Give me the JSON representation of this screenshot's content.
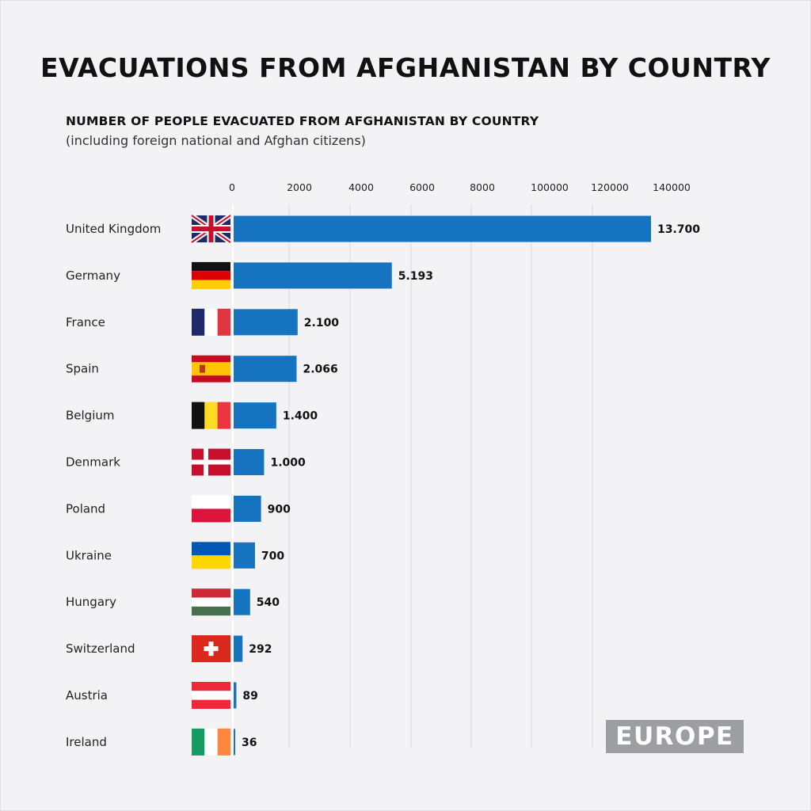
{
  "title": "EVACUATIONS FROM AFGHANISTAN BY COUNTRY",
  "subtitle": "NUMBER OF PEOPLE EVACUATED FROM AFGHANISTAN BY COUNTRY",
  "subtitle_note": "(including foreign national and Afghan citizens)",
  "badge": "EUROPE",
  "colors": {
    "bar": "#1673bf",
    "background": "#f3f2f5",
    "gridline": "#d8d8de",
    "badge": "#9d9ea2"
  },
  "chart_data": {
    "type": "bar",
    "orientation": "horizontal",
    "xtick_labels": [
      "0",
      "2000",
      "4000",
      "6000",
      "8000",
      "100000",
      "120000",
      "140000"
    ],
    "grid": true,
    "categories": [
      "United Kingdom",
      "Germany",
      "France",
      "Spain",
      "Belgium",
      "Denmark",
      "Poland",
      "Ukraine",
      "Hungary",
      "Switzerland",
      "Austria",
      "Ireland"
    ],
    "values": [
      13700,
      5193,
      2100,
      2066,
      1400,
      1000,
      900,
      700,
      540,
      292,
      89,
      36
    ],
    "value_labels": [
      "13.700",
      "5.193",
      "2.100",
      "2.066",
      "1.400",
      "1.000",
      "900",
      "700",
      "540",
      "292",
      "89",
      "36"
    ],
    "flags": [
      "uk-flag",
      "germany-flag",
      "france-flag",
      "spain-flag",
      "belgium-flag",
      "denmark-flag",
      "poland-flag",
      "ukraine-flag",
      "hungary-flag",
      "switzerland-flag",
      "austria-flag",
      "ireland-flag"
    ],
    "xlim": [
      0,
      14000
    ]
  }
}
